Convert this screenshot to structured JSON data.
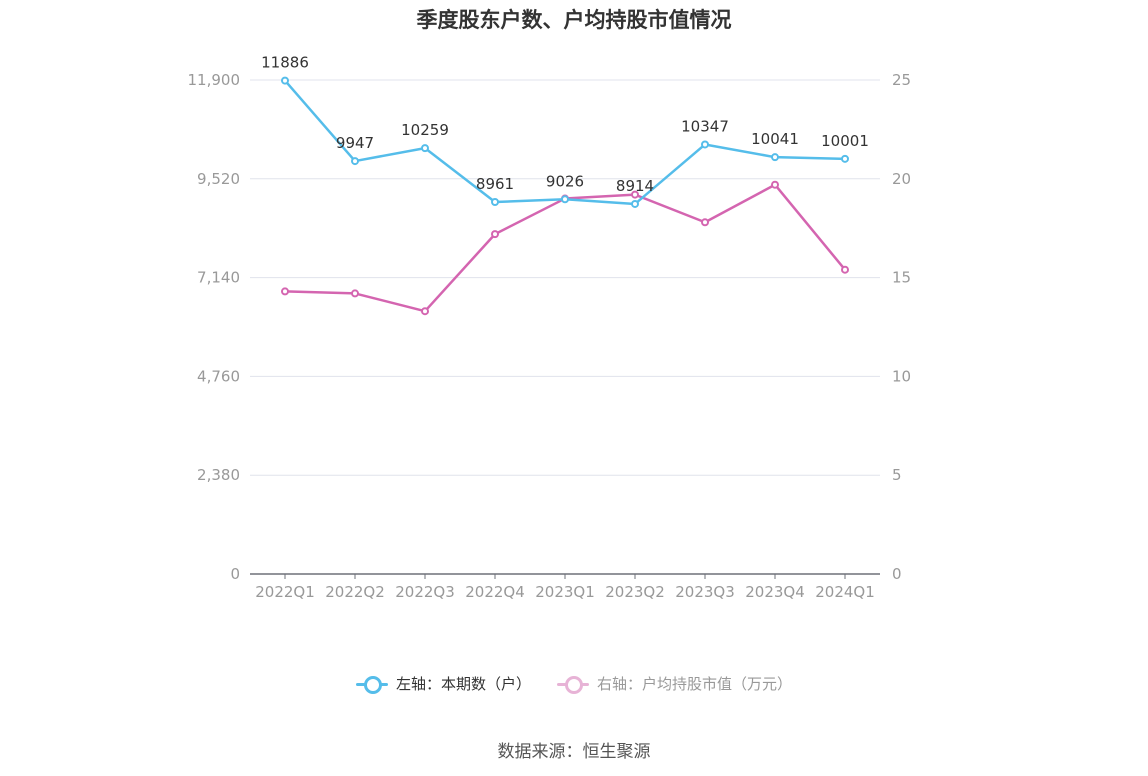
{
  "chart_data": {
    "type": "line",
    "title": "季度股东户数、户均持股市值情况",
    "categories": [
      "2022Q1",
      "2022Q2",
      "2022Q3",
      "2022Q4",
      "2023Q1",
      "2023Q2",
      "2023Q3",
      "2023Q4",
      "2024Q1"
    ],
    "left_axis": {
      "ylim": [
        0,
        11900
      ],
      "ticks": [
        "0",
        "2,380",
        "4,760",
        "7,140",
        "9,520",
        "11,900"
      ]
    },
    "right_axis": {
      "ylim": [
        0,
        25
      ],
      "ticks": [
        "0",
        "5",
        "10",
        "15",
        "20",
        "25"
      ]
    },
    "series": [
      {
        "name": "左轴：本期数（户）",
        "axis": "left",
        "color": "#55bdea",
        "values": [
          11886,
          9947,
          10259,
          8961,
          9026,
          8914,
          10347,
          10041,
          10001
        ],
        "labels": [
          "11886",
          "9947",
          "10259",
          "8961",
          "9026",
          "8914",
          "10347",
          "10041",
          "10001"
        ]
      },
      {
        "name": "右轴：户均持股市值（万元）",
        "axis": "right",
        "color": "#d465b0",
        "values": [
          14.3,
          14.2,
          13.3,
          17.2,
          19.0,
          19.2,
          17.8,
          19.7,
          15.4
        ]
      }
    ],
    "grid": true,
    "legend": "bottom-center"
  },
  "source": "数据来源：恒生聚源"
}
